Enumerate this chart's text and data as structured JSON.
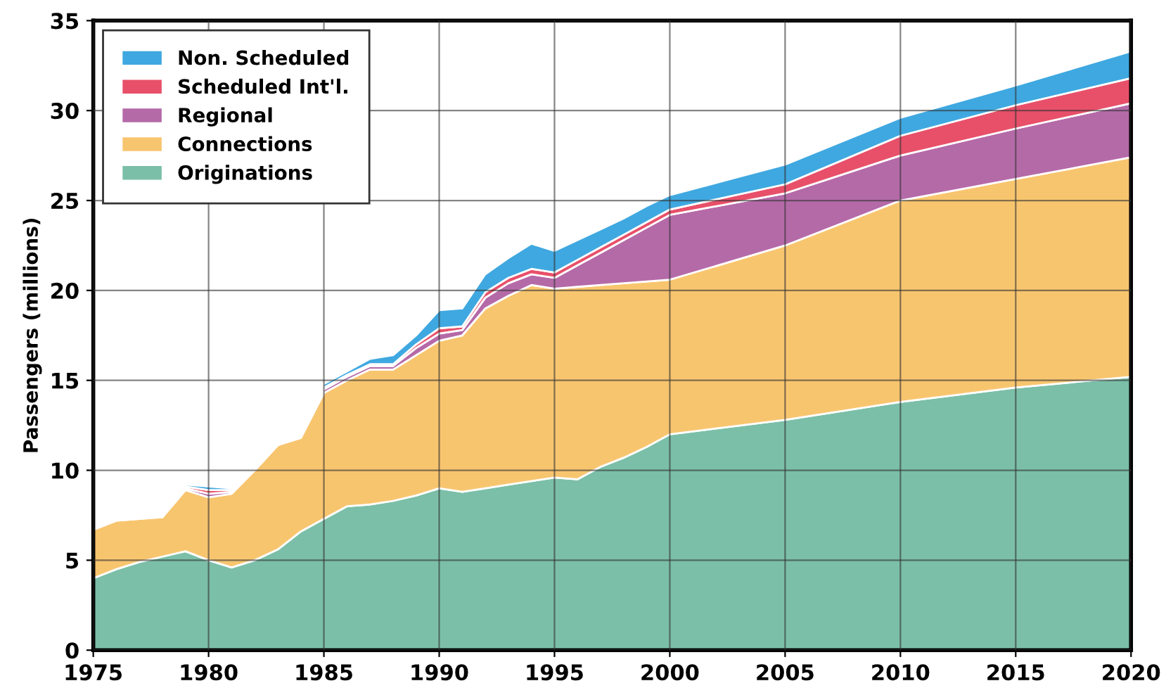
{
  "chart_data": {
    "type": "area",
    "stacked": true,
    "ylabel": "Passengers (millions)",
    "x": [
      1975,
      1976,
      1977,
      1978,
      1979,
      1980,
      1981,
      1982,
      1983,
      1984,
      1985,
      1986,
      1987,
      1988,
      1989,
      1990,
      1991,
      1992,
      1993,
      1994,
      1995,
      1996,
      1997,
      1998,
      1999,
      2000,
      2005,
      2010,
      2015,
      2020
    ],
    "series": [
      {
        "name": "Originations",
        "color": "#7bbfa8",
        "values": [
          4.0,
          4.5,
          4.9,
          5.2,
          5.5,
          5.0,
          4.6,
          5.0,
          5.6,
          6.6,
          7.3,
          8.0,
          8.1,
          8.3,
          8.6,
          9.0,
          8.8,
          9.0,
          9.2,
          9.4,
          9.6,
          9.5,
          10.2,
          10.7,
          11.3,
          12.0,
          12.8,
          13.8,
          14.6,
          15.2
        ]
      },
      {
        "name": "Connections",
        "color": "#f8c56f",
        "values": [
          2.7,
          2.7,
          2.4,
          2.2,
          3.4,
          3.5,
          4.1,
          5.0,
          5.8,
          5.2,
          7.0,
          7.0,
          7.5,
          7.3,
          7.8,
          8.2,
          8.7,
          10.0,
          10.5,
          10.9,
          10.5,
          10.7,
          10.1,
          9.7,
          9.2,
          8.6,
          9.7,
          11.2,
          11.6,
          12.2
        ]
      },
      {
        "name": "Regional",
        "color": "#b56aa8",
        "values": [
          0,
          0.1,
          0.1,
          0,
          0.1,
          0.2,
          0.1,
          0,
          0,
          0.1,
          0.2,
          0.2,
          0.2,
          0.2,
          0.4,
          0.4,
          0.3,
          0.6,
          0.7,
          0.6,
          0.6,
          1.2,
          1.8,
          2.4,
          3.0,
          3.6,
          2.9,
          2.5,
          2.8,
          3.0
        ]
      },
      {
        "name": "Scheduled Int'l.",
        "color": "#e8506a",
        "values": [
          0,
          0.1,
          0.1,
          0.1,
          0.1,
          0.2,
          0.1,
          0,
          0,
          0,
          0.1,
          0.1,
          0.1,
          0.1,
          0.2,
          0.3,
          0.2,
          0.3,
          0.3,
          0.3,
          0.3,
          0.3,
          0.3,
          0.3,
          0.3,
          0.3,
          0.5,
          1.1,
          1.3,
          1.4
        ]
      },
      {
        "name": "Non. Scheduled",
        "color": "#3fa8e0",
        "values": [
          0,
          0,
          0,
          0,
          0.1,
          0.2,
          0.1,
          0,
          0.1,
          0.1,
          0.2,
          0.2,
          0.3,
          0.5,
          0.5,
          1.0,
          1.0,
          1.0,
          1.1,
          1.4,
          1.2,
          1.1,
          1.0,
          0.9,
          0.9,
          0.8,
          1.1,
          1.0,
          1.1,
          1.5
        ]
      }
    ],
    "xlim": [
      1975,
      2020
    ],
    "xticks": [
      1975,
      1980,
      1985,
      1990,
      1995,
      2000,
      2005,
      2010,
      2015,
      2020
    ],
    "ylim": [
      0,
      35
    ],
    "yticks": [
      0,
      5,
      10,
      15,
      20,
      25,
      30,
      35
    ],
    "grid": true,
    "legend": "top left"
  }
}
